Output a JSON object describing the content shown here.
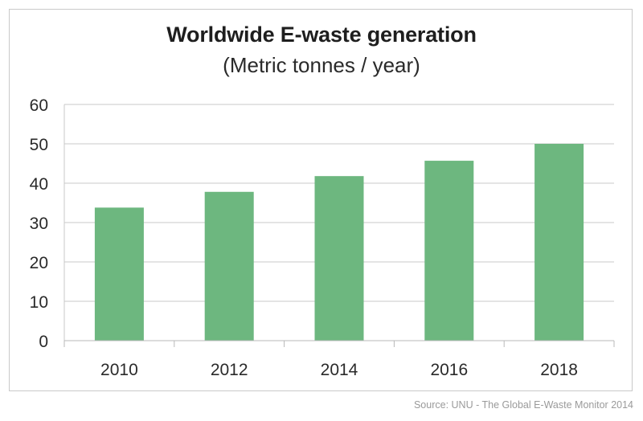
{
  "chart_data": {
    "type": "bar",
    "title": "Worldwide E-waste generation",
    "subtitle": "(Metric tonnes / year)",
    "xlabel": "",
    "ylabel": "",
    "categories": [
      "2010",
      "2012",
      "2014",
      "2016",
      "2018"
    ],
    "values": [
      33.8,
      37.8,
      41.8,
      45.7,
      50.0
    ],
    "ylim": [
      0,
      60
    ],
    "yticks": [
      0,
      10,
      20,
      30,
      40,
      50,
      60
    ],
    "grid": true,
    "legend": "none",
    "bar_color": "#6db77f",
    "grid_color": "#c8c8c8"
  },
  "source": "Source: UNU - The Global E-Waste Monitor 2014"
}
